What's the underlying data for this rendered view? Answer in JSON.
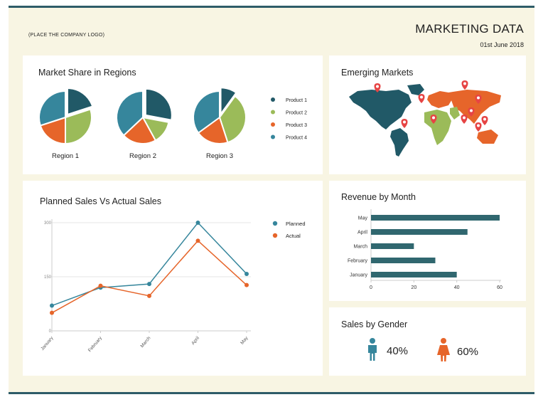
{
  "header": {
    "logo_placeholder": "(PLACE THE COMPANY LOGO)",
    "title": "MARKETING DATA",
    "date": "01st June 2018"
  },
  "colors": {
    "teal_dark": "#215967",
    "green": "#9bbb59",
    "orange": "#e6652a",
    "teal": "#36869c",
    "pin": "#e64444",
    "line_planned": "#36869c",
    "line_actual": "#e6652a",
    "bar": "#30676f",
    "background": "#f8f5e3"
  },
  "market_share": {
    "title": "Market Share in Regions",
    "legend": [
      "Product 1",
      "Product 2",
      "Product 3",
      "Product 4"
    ],
    "legend_colors": [
      "#215967",
      "#9bbb59",
      "#e6652a",
      "#36869c"
    ]
  },
  "emerging": {
    "title": "Emerging Markets"
  },
  "planned_vs_actual": {
    "title": "Planned Sales Vs Actual Sales",
    "legend": [
      "Planned",
      "Actual"
    ]
  },
  "revenue": {
    "title": "Revenue by Month"
  },
  "gender": {
    "title": "Sales by Gender",
    "male_percent": "40%",
    "female_percent": "60%",
    "male_color": "#36869c",
    "female_color": "#e6652a"
  },
  "chart_data": [
    {
      "type": "pie",
      "title": "Region 1",
      "categories": [
        "Product 1",
        "Product 2",
        "Product 3",
        "Product 4"
      ],
      "values": [
        20,
        30,
        20,
        30
      ],
      "exploded": "Product 1"
    },
    {
      "type": "pie",
      "title": "Region 2",
      "categories": [
        "Product 1",
        "Product 2",
        "Product 3",
        "Product 4"
      ],
      "values": [
        28,
        14,
        21,
        37
      ],
      "exploded": "Product 1"
    },
    {
      "type": "pie",
      "title": "Region 3",
      "categories": [
        "Product 1",
        "Product 2",
        "Product 3",
        "Product 4"
      ],
      "values": [
        10,
        35,
        20,
        35
      ],
      "exploded": "Product 1"
    },
    {
      "type": "line",
      "categories": [
        "January",
        "February",
        "March",
        "April",
        "May"
      ],
      "series": [
        {
          "name": "Planned",
          "values": [
            70,
            120,
            130,
            300,
            158
          ]
        },
        {
          "name": "Actual",
          "values": [
            50,
            125,
            97,
            250,
            127
          ]
        }
      ],
      "yticks": [
        0,
        150,
        300
      ],
      "ylim": [
        0,
        300
      ]
    },
    {
      "type": "bar",
      "orientation": "horizontal",
      "categories": [
        "May",
        "April",
        "March",
        "February",
        "January"
      ],
      "values": [
        60,
        45,
        20,
        30,
        40
      ],
      "xticks": [
        0,
        20,
        40,
        60
      ],
      "xlim": [
        0,
        60
      ]
    }
  ]
}
